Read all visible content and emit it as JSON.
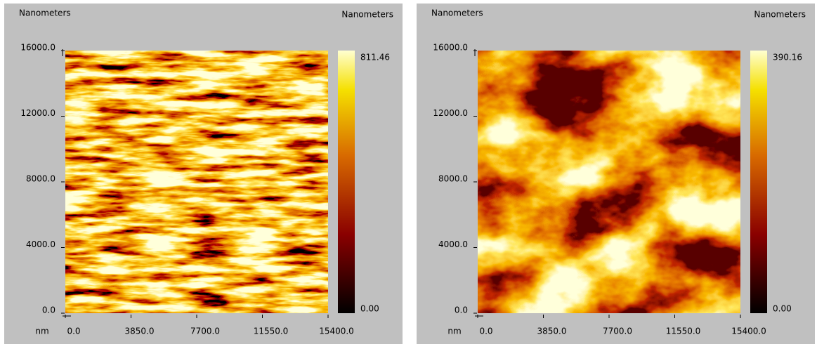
{
  "chart_data": [
    {
      "type": "heatmap",
      "title": "Nanometers",
      "colorbar_title": "Nanometers",
      "xlabel": "nm",
      "xlim": [
        0,
        15400
      ],
      "ylim": [
        0,
        16000
      ],
      "zlim": [
        0,
        811.46
      ],
      "xticks": [
        {
          "value": 0,
          "label": "0.0"
        },
        {
          "value": 3850,
          "label": "3850.0"
        },
        {
          "value": 7700,
          "label": "7700.0"
        },
        {
          "value": 11550,
          "label": "11550.0"
        },
        {
          "value": 15400,
          "label": "15400.0"
        }
      ],
      "yticks": [
        {
          "value": 0,
          "label": "0.0"
        },
        {
          "value": 4000,
          "label": "4000.0"
        },
        {
          "value": 8000,
          "label": "8000.0"
        },
        {
          "value": 12000,
          "label": "12000.0"
        },
        {
          "value": 16000,
          "label": "16000.0"
        }
      ],
      "zticks": [
        {
          "value": 0,
          "label": "0.00"
        },
        811.46
      ]
    },
    {
      "type": "heatmap",
      "title": "Nanometers",
      "colorbar_title": "Nanometers",
      "xlabel": "nm",
      "xlim": [
        0,
        15400
      ],
      "ylim": [
        0,
        16000
      ],
      "zlim": [
        0,
        390.16
      ],
      "xticks": [
        {
          "value": 0,
          "label": "0.0"
        },
        {
          "value": 3850,
          "label": "3850.0"
        },
        {
          "value": 7700,
          "label": "7700.0"
        },
        {
          "value": 11550,
          "label": "11550.0"
        },
        {
          "value": 15400,
          "label": "15400.0"
        }
      ],
      "yticks": [
        {
          "value": 0,
          "label": "0.0"
        },
        {
          "value": 4000,
          "label": "4000.0"
        },
        {
          "value": 8000,
          "label": "8000.0"
        },
        {
          "value": 12000,
          "label": "12000.0"
        },
        {
          "value": 16000,
          "label": "16000.0"
        }
      ],
      "zticks": [
        {
          "value": 0,
          "label": "0.00"
        },
        390.16
      ]
    }
  ]
}
